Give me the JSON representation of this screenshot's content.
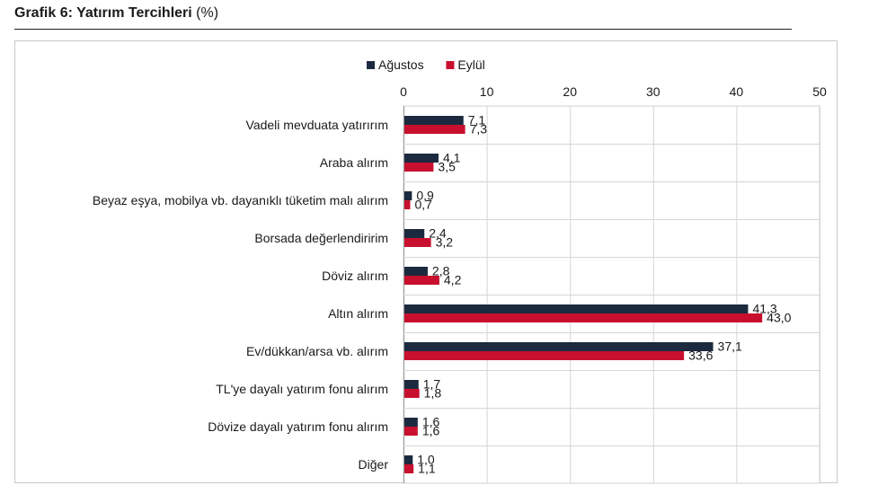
{
  "title": {
    "main": "Grafik 6: Yatırım Tercihleri",
    "unit": "(%)"
  },
  "chart_data": {
    "type": "bar",
    "orientation": "horizontal",
    "categories": [
      "Vadeli mevduata yatırırım",
      "Araba alırım",
      "Beyaz eşya, mobilya vb. dayanıklı tüketim malı alırım",
      "Borsada değerlendiririm",
      "Döviz alırım",
      "Altın alırım",
      "Ev/dükkan/arsa vb. alırım",
      "TL'ye dayalı yatırım fonu alırım",
      "Dövize dayalı yatırım fonu alırım",
      "Diğer"
    ],
    "series": [
      {
        "name": "Ağustos",
        "color": "#1c2a3f",
        "values": [
          7.1,
          4.1,
          0.9,
          2.4,
          2.8,
          41.3,
          37.1,
          1.7,
          1.6,
          1.0
        ],
        "labels": [
          "7,1",
          "4,1",
          "0,9",
          "2,4",
          "2,8",
          "41,3",
          "37,1",
          "1,7",
          "1,6",
          "1,0"
        ]
      },
      {
        "name": "Eylül",
        "color": "#c8102e",
        "values": [
          7.3,
          3.5,
          0.7,
          3.2,
          4.2,
          43.0,
          33.6,
          1.8,
          1.6,
          1.1
        ],
        "labels": [
          "7,3",
          "3,5",
          "0,7",
          "3,2",
          "4,2",
          "43,0",
          "33,6",
          "1,8",
          "1,6",
          "1,1"
        ]
      }
    ],
    "xlim": [
      0,
      50
    ],
    "x_ticks": [
      0,
      10,
      20,
      30,
      40,
      50
    ],
    "x_tick_labels": [
      "0",
      "10",
      "20",
      "30",
      "40",
      "50"
    ],
    "x_axis_position": "top",
    "legend_position": "top-center",
    "grid": true
  }
}
